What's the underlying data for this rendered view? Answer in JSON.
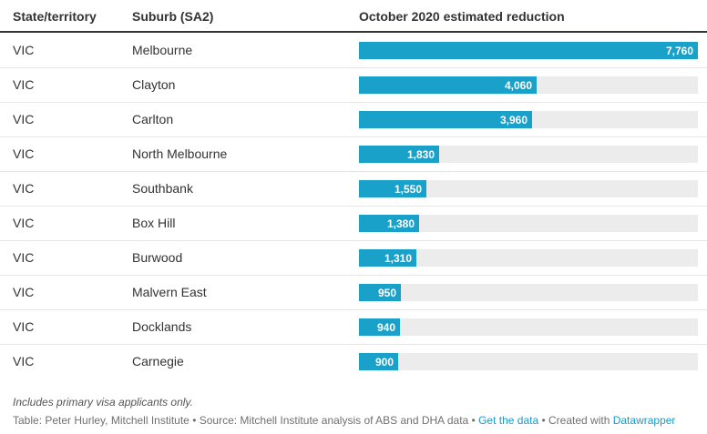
{
  "header": {
    "col_state": "State/territory",
    "col_suburb": "Suburb (SA2)",
    "col_reduction": "October 2020 estimated reduction"
  },
  "colors": {
    "bar": "#1aa1c9",
    "track": "#ececec",
    "link": "#1a9ac7"
  },
  "chart_data": {
    "type": "bar",
    "orientation": "horizontal",
    "xlim": [
      0,
      7760
    ],
    "columns": [
      "State/territory",
      "Suburb (SA2)",
      "October 2020 estimated reduction"
    ],
    "rows": [
      {
        "state": "VIC",
        "suburb": "Melbourne",
        "value": 7760,
        "label": "7,760"
      },
      {
        "state": "VIC",
        "suburb": "Clayton",
        "value": 4060,
        "label": "4,060"
      },
      {
        "state": "VIC",
        "suburb": "Carlton",
        "value": 3960,
        "label": "3,960"
      },
      {
        "state": "VIC",
        "suburb": "North Melbourne",
        "value": 1830,
        "label": "1,830"
      },
      {
        "state": "VIC",
        "suburb": "Southbank",
        "value": 1550,
        "label": "1,550"
      },
      {
        "state": "VIC",
        "suburb": "Box Hill",
        "value": 1380,
        "label": "1,380"
      },
      {
        "state": "VIC",
        "suburb": "Burwood",
        "value": 1310,
        "label": "1,310"
      },
      {
        "state": "VIC",
        "suburb": "Malvern East",
        "value": 950,
        "label": "950"
      },
      {
        "state": "VIC",
        "suburb": "Docklands",
        "value": 940,
        "label": "940"
      },
      {
        "state": "VIC",
        "suburb": "Carnegie",
        "value": 900,
        "label": "900"
      }
    ]
  },
  "footer": {
    "note": "Includes primary visa applicants only.",
    "source_prefix": "Table: Peter Hurley, Mitchell Institute • Source: Mitchell Institute analysis of ABS and DHA data • ",
    "get_data": "Get the data",
    "created_prefix": " • Created with ",
    "datawrapper": "Datawrapper"
  }
}
